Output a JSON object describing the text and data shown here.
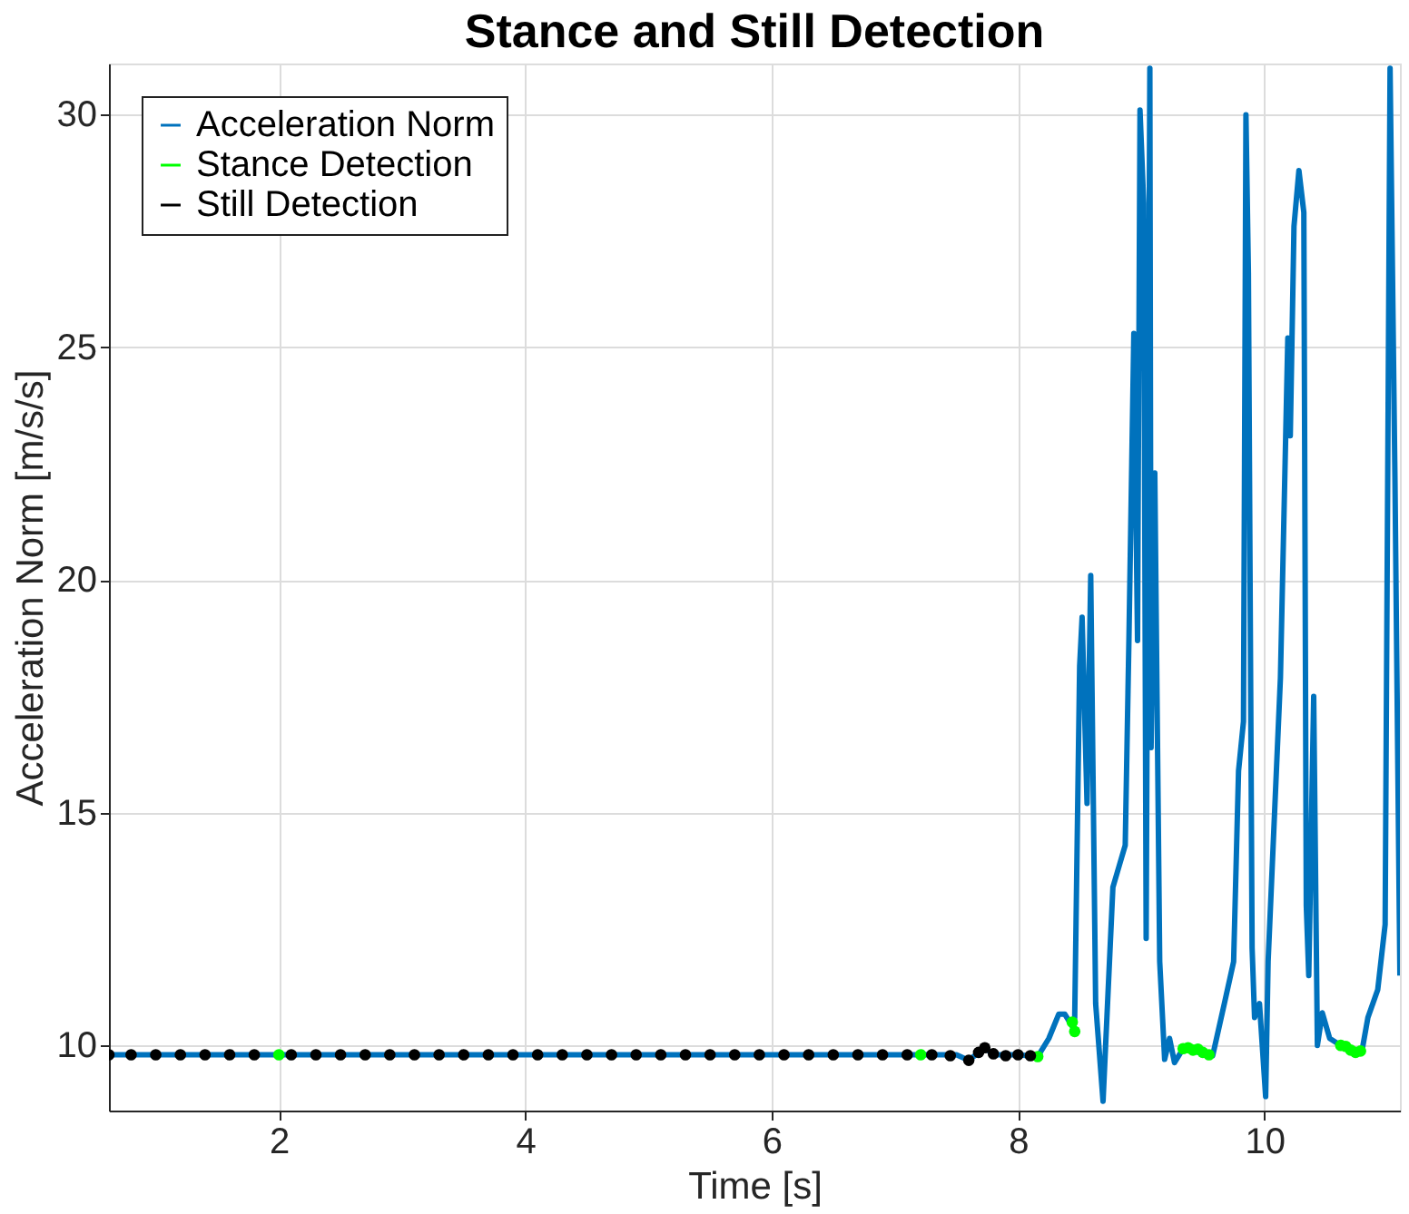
{
  "chart_data": {
    "type": "line",
    "title": "Stance and Still Detection",
    "xlabel": "Time [s]",
    "ylabel": "Acceleration Norm [m/s/s]",
    "xlim": [
      0.62,
      11.1
    ],
    "ylim": [
      8.6,
      31.1
    ],
    "xticks": [
      2,
      4,
      6,
      8,
      10
    ],
    "yticks": [
      10,
      15,
      20,
      25,
      30
    ],
    "grid": true,
    "legend": "top left",
    "series": [
      {
        "name": "Acceleration Norm",
        "color": "#0072bd",
        "marker": "none",
        "x": [
          0.62,
          1.5,
          2.5,
          3.5,
          4.5,
          5.5,
          6.5,
          7.5,
          7.6,
          7.73,
          7.8,
          8.0,
          8.16,
          8.25,
          8.33,
          8.38,
          8.45,
          8.46,
          8.5,
          8.52,
          8.56,
          8.59,
          8.63,
          8.69,
          8.77,
          8.82,
          8.87,
          8.9,
          8.94,
          8.97,
          8.99,
          9.02,
          9.04,
          9.07,
          9.08,
          9.11,
          9.15,
          9.19,
          9.23,
          9.27,
          9.34,
          9.58,
          9.68,
          9.75,
          9.79,
          9.83,
          9.85,
          9.87,
          9.9,
          9.92,
          9.96,
          10.01,
          10.03,
          10.13,
          10.19,
          10.21,
          10.24,
          10.28,
          10.32,
          10.34,
          10.36,
          10.4,
          10.43,
          10.47,
          10.53,
          10.62,
          10.79,
          10.84,
          10.92,
          10.98,
          11.02,
          11.06,
          11.1
        ],
        "values": [
          9.8,
          9.8,
          9.8,
          9.8,
          9.8,
          9.8,
          9.8,
          9.8,
          9.68,
          9.95,
          9.8,
          9.8,
          9.76,
          10.15,
          10.67,
          10.67,
          10.37,
          10.6,
          18.15,
          19.2,
          15.2,
          20.1,
          10.9,
          8.8,
          13.4,
          13.85,
          14.3,
          18.7,
          25.3,
          18.7,
          30.1,
          28.1,
          12.3,
          31.0,
          16.4,
          22.3,
          11.8,
          9.7,
          10.15,
          9.63,
          9.93,
          9.78,
          10.96,
          11.8,
          15.9,
          16.96,
          30.0,
          26.6,
          12.1,
          10.6,
          10.9,
          8.9,
          11.8,
          17.9,
          25.2,
          23.1,
          27.6,
          28.8,
          27.9,
          13.0,
          11.5,
          17.5,
          10.0,
          10.7,
          10.15,
          10.0,
          9.85,
          10.6,
          11.2,
          12.6,
          31.0,
          22.1,
          11.5
        ]
      },
      {
        "name": "Stance Detection",
        "color": "#00ff00",
        "type": "scatter",
        "marker": "circle",
        "x": [
          2.0,
          7.21,
          8.16,
          8.44,
          8.46,
          9.34,
          9.38,
          9.42,
          9.46,
          9.5,
          9.55,
          10.62,
          10.66,
          10.7,
          10.74,
          10.78
        ],
        "values": [
          9.8,
          9.8,
          9.76,
          10.5,
          10.3,
          9.93,
          9.95,
          9.9,
          9.92,
          9.85,
          9.8,
          10.0,
          9.98,
          9.9,
          9.85,
          9.88
        ]
      },
      {
        "name": "Still Detection",
        "color": "#000000",
        "type": "scatter",
        "marker": "circle",
        "x": [
          0.62,
          0.8,
          1.0,
          1.2,
          1.4,
          1.6,
          1.8,
          2.1,
          2.3,
          2.5,
          2.7,
          2.9,
          3.1,
          3.3,
          3.5,
          3.7,
          3.9,
          4.1,
          4.3,
          4.5,
          4.7,
          4.9,
          5.1,
          5.3,
          5.5,
          5.7,
          5.9,
          6.1,
          6.3,
          6.5,
          6.7,
          6.9,
          7.1,
          7.3,
          7.45,
          7.6,
          7.68,
          7.73,
          7.8,
          7.9,
          8.0,
          8.1
        ],
        "values": [
          9.8,
          9.8,
          9.8,
          9.8,
          9.8,
          9.8,
          9.8,
          9.8,
          9.8,
          9.8,
          9.8,
          9.8,
          9.8,
          9.8,
          9.8,
          9.8,
          9.8,
          9.8,
          9.8,
          9.8,
          9.8,
          9.8,
          9.8,
          9.8,
          9.8,
          9.8,
          9.8,
          9.8,
          9.8,
          9.8,
          9.8,
          9.8,
          9.8,
          9.8,
          9.78,
          9.68,
          9.85,
          9.95,
          9.82,
          9.78,
          9.8,
          9.78
        ]
      }
    ]
  }
}
